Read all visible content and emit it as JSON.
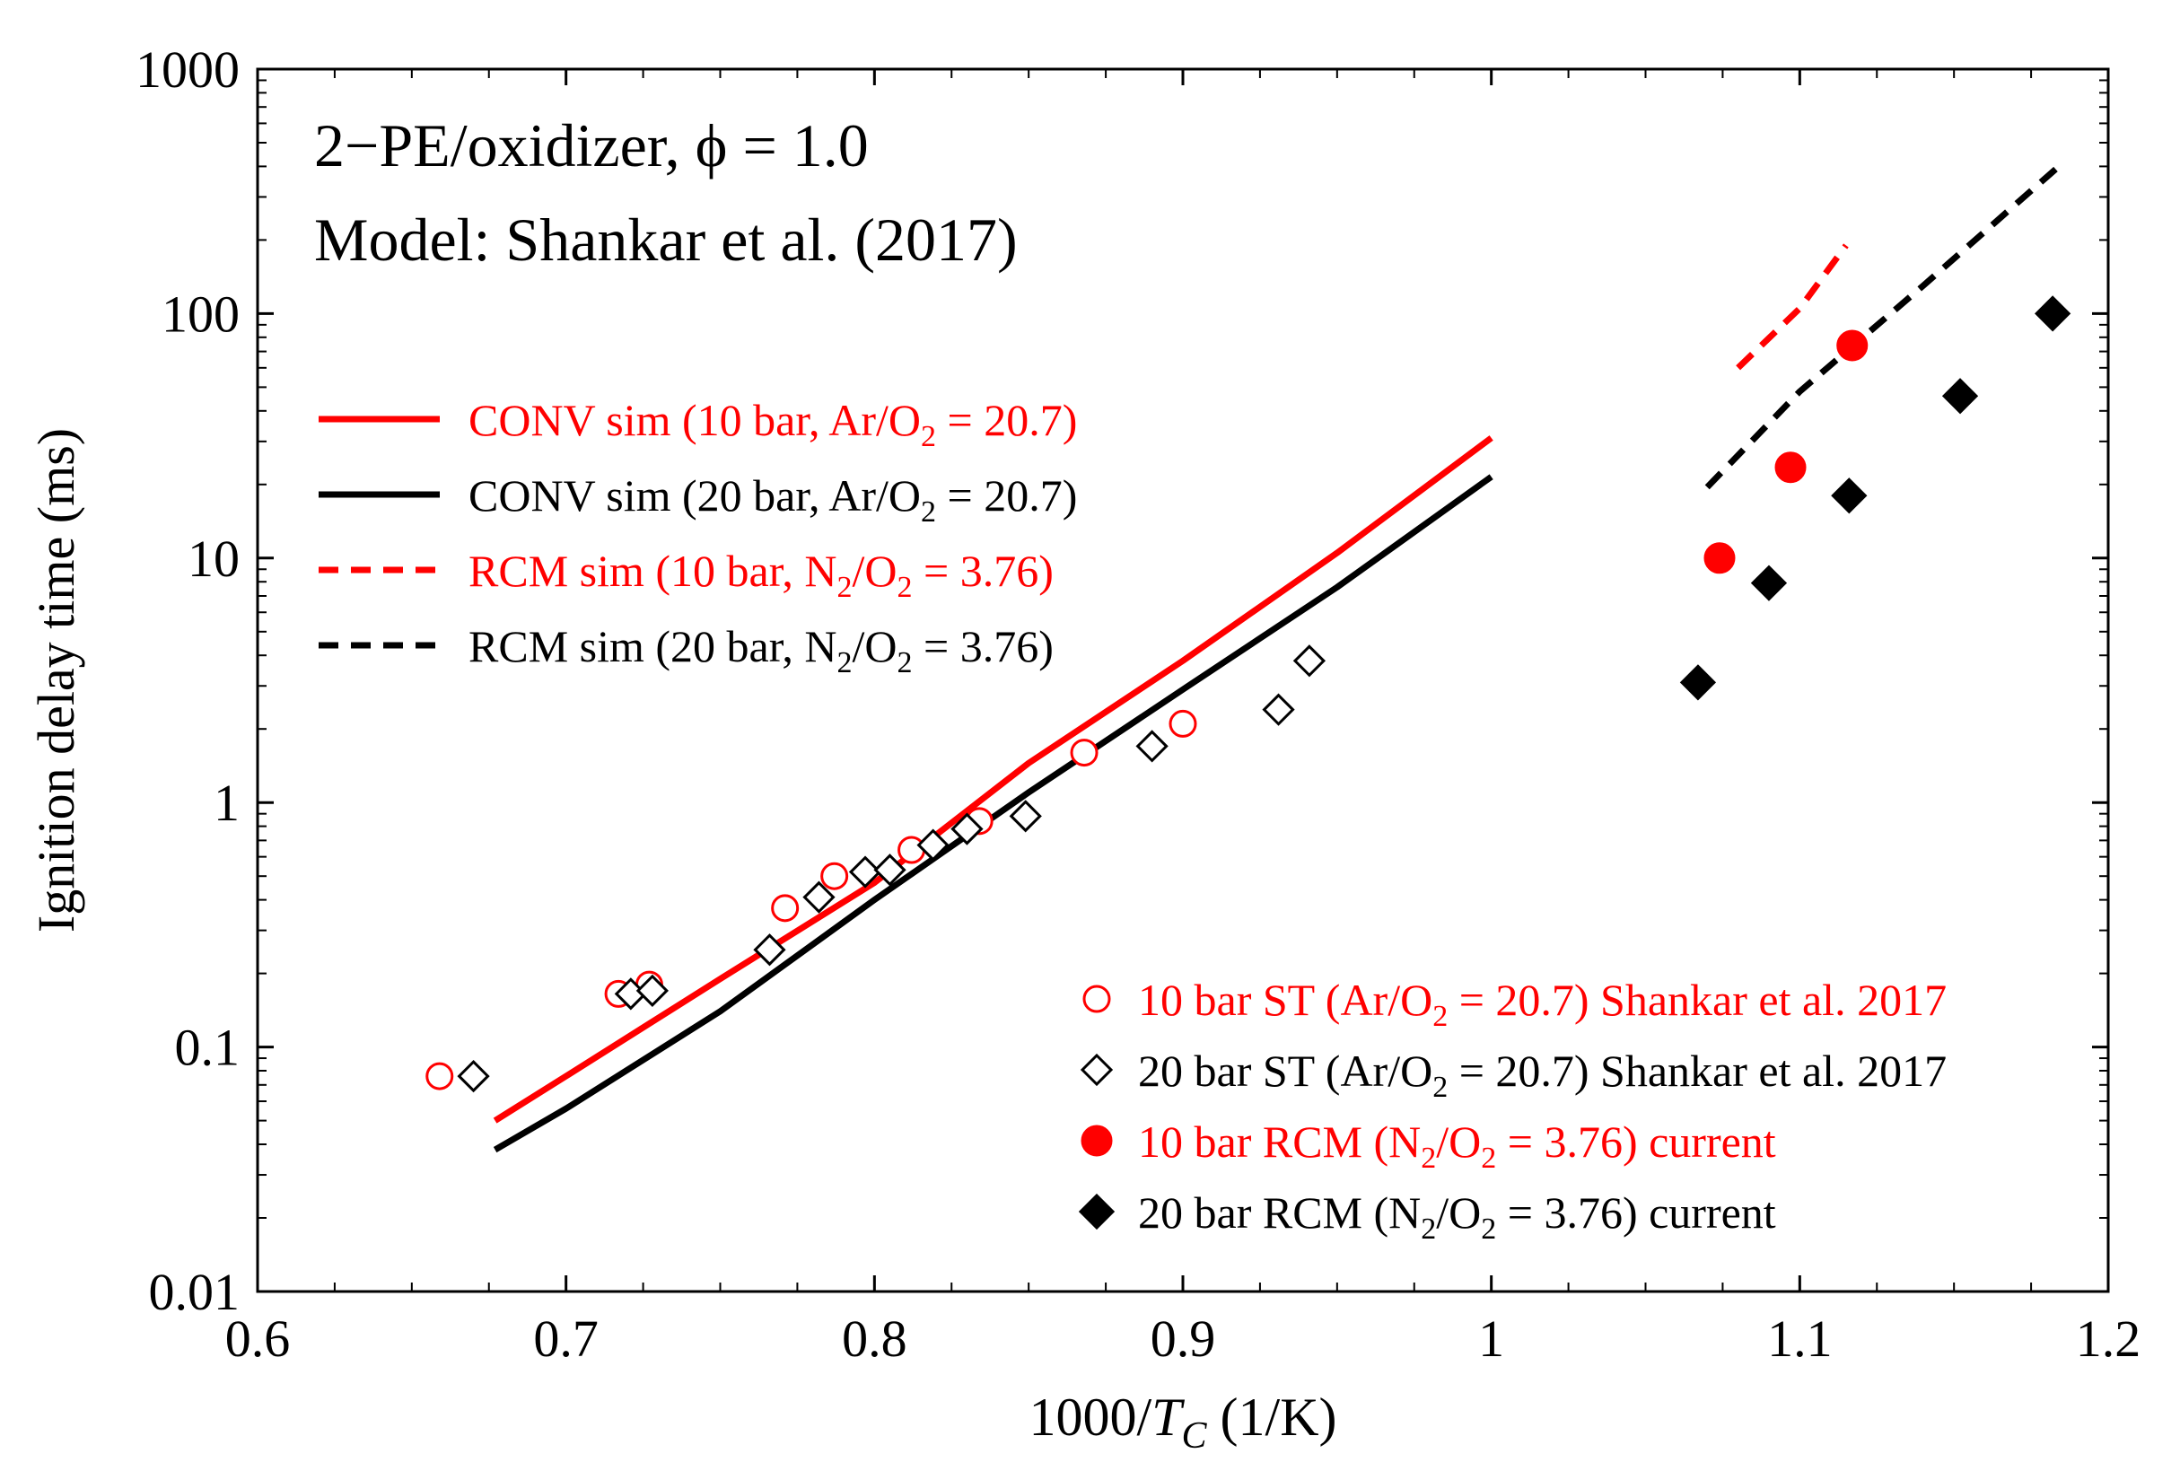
{
  "chart_data": {
    "type": "scatter",
    "title_lines": [
      "2−PE/oxidizer, ϕ = 1.0",
      "Model: Shankar et al. (2017)"
    ],
    "xlabel": {
      "pre": "1000/",
      "var": "T",
      "sub": "C",
      "post": " (1/K)"
    },
    "ylabel": "Ignition delay time (ms)",
    "xlim": [
      0.6,
      1.2
    ],
    "ylim": [
      0.01,
      1000
    ],
    "yscale": "log",
    "xticks": [
      0.6,
      0.7,
      0.8,
      0.9,
      1.0,
      1.1,
      1.2
    ],
    "xtick_labels": [
      "0.6",
      "0.7",
      "0.8",
      "0.9",
      "1",
      "1.1",
      "1.2"
    ],
    "yticks": [
      0.01,
      0.1,
      1,
      10,
      100,
      1000
    ],
    "ytick_labels": [
      "0.01",
      "0.1",
      "1",
      "10",
      "100",
      "1000"
    ],
    "colors": {
      "red": "#ff0000",
      "black": "#000000"
    },
    "lines": [
      {
        "name": "CONV sim (10 bar, Ar/O2 = 20.7)",
        "color": "#ff0000",
        "dash": false,
        "x": [
          0.677,
          0.7,
          0.75,
          0.8,
          0.85,
          0.9,
          0.95,
          1.0
        ],
        "y": [
          0.05,
          0.076,
          0.19,
          0.47,
          1.45,
          3.8,
          10.5,
          31
        ]
      },
      {
        "name": "CONV sim (20 bar, Ar/O2 = 20.7)",
        "color": "#000000",
        "dash": false,
        "x": [
          0.677,
          0.7,
          0.75,
          0.8,
          0.85,
          0.9,
          0.95,
          1.0
        ],
        "y": [
          0.038,
          0.056,
          0.14,
          0.4,
          1.1,
          2.9,
          7.6,
          21.5
        ]
      },
      {
        "name": "RCM sim (10 bar, N2/O2 = 3.76)",
        "color": "#ff0000",
        "dash": true,
        "x": [
          1.08,
          1.1,
          1.115
        ],
        "y": [
          60,
          105,
          190
        ]
      },
      {
        "name": "RCM sim (20 bar, N2/O2 = 3.76)",
        "color": "#000000",
        "dash": true,
        "x": [
          1.07,
          1.1,
          1.14,
          1.183
        ],
        "y": [
          19.5,
          48,
          130,
          390
        ]
      }
    ],
    "legend_lines": [
      {
        "parts": [
          [
            "CONV sim (10 bar, Ar/O",
            ""
          ],
          [
            "2",
            "sub"
          ],
          [
            " = 20.7)",
            ""
          ]
        ],
        "color": "#ff0000",
        "dash": false
      },
      {
        "parts": [
          [
            "CONV sim (20 bar, Ar/O",
            ""
          ],
          [
            "2",
            "sub"
          ],
          [
            " = 20.7)",
            ""
          ]
        ],
        "color": "#000000",
        "dash": false
      },
      {
        "parts": [
          [
            "RCM sim (10 bar, N",
            ""
          ],
          [
            "2",
            "sub"
          ],
          [
            "/O",
            ""
          ],
          [
            "2",
            "sub"
          ],
          [
            " = 3.76)",
            ""
          ]
        ],
        "color": "#ff0000",
        "dash": true
      },
      {
        "parts": [
          [
            "RCM sim (20 bar, N",
            ""
          ],
          [
            "2",
            "sub"
          ],
          [
            "/O",
            ""
          ],
          [
            "2",
            "sub"
          ],
          [
            " = 3.76)",
            ""
          ]
        ],
        "color": "#000000",
        "dash": true
      }
    ],
    "scatter_series": [
      {
        "name": "10 bar ST (Ar/O2 = 20.7) Shankar et al. 2017",
        "marker": "circle-open",
        "color": "#ff0000",
        "x": [
          0.659,
          0.717,
          0.727,
          0.771,
          0.787,
          0.812,
          0.834,
          0.868,
          0.9
        ],
        "y": [
          0.076,
          0.165,
          0.18,
          0.37,
          0.5,
          0.64,
          0.84,
          1.6,
          2.1
        ]
      },
      {
        "name": "20 bar ST (Ar/O2 = 20.7) Shankar et al. 2017",
        "marker": "diamond-open",
        "color": "#000000",
        "x": [
          0.67,
          0.721,
          0.728,
          0.766,
          0.782,
          0.797,
          0.805,
          0.819,
          0.83,
          0.849,
          0.89,
          0.931,
          0.941
        ],
        "y": [
          0.076,
          0.165,
          0.17,
          0.25,
          0.41,
          0.52,
          0.53,
          0.67,
          0.78,
          0.88,
          1.7,
          2.4,
          3.8
        ]
      },
      {
        "name": "10 bar RCM (N2/O2 = 3.76) current",
        "marker": "circle-filled",
        "color": "#ff0000",
        "x": [
          1.074,
          1.097,
          1.117
        ],
        "y": [
          10,
          23.5,
          74
        ]
      },
      {
        "name": "20 bar RCM (N2/O2 = 3.76) current",
        "marker": "diamond-filled",
        "color": "#000000",
        "x": [
          1.067,
          1.09,
          1.116,
          1.152,
          1.182
        ],
        "y": [
          3.1,
          7.9,
          18,
          46,
          100
        ]
      }
    ],
    "legend_markers": [
      {
        "parts": [
          [
            "10 bar ST (Ar/O",
            ""
          ],
          [
            "2",
            "sub"
          ],
          [
            " = 20.7) Shankar et al. 2017",
            ""
          ]
        ],
        "marker": "circle-open",
        "color": "#ff0000"
      },
      {
        "parts": [
          [
            "20 bar ST (Ar/O",
            ""
          ],
          [
            "2",
            "sub"
          ],
          [
            " = 20.7) Shankar et al. 2017",
            ""
          ]
        ],
        "marker": "diamond-open",
        "color": "#000000"
      },
      {
        "parts": [
          [
            "10 bar RCM (N",
            ""
          ],
          [
            "2",
            "sub"
          ],
          [
            "/O",
            ""
          ],
          [
            "2",
            "sub"
          ],
          [
            " = 3.76) current",
            ""
          ]
        ],
        "marker": "circle-filled",
        "color": "#ff0000"
      },
      {
        "parts": [
          [
            "20 bar RCM (N",
            ""
          ],
          [
            "2",
            "sub"
          ],
          [
            "/O",
            ""
          ],
          [
            "2",
            "sub"
          ],
          [
            " = 3.76) current",
            ""
          ]
        ],
        "marker": "diamond-filled",
        "color": "#000000"
      }
    ]
  }
}
